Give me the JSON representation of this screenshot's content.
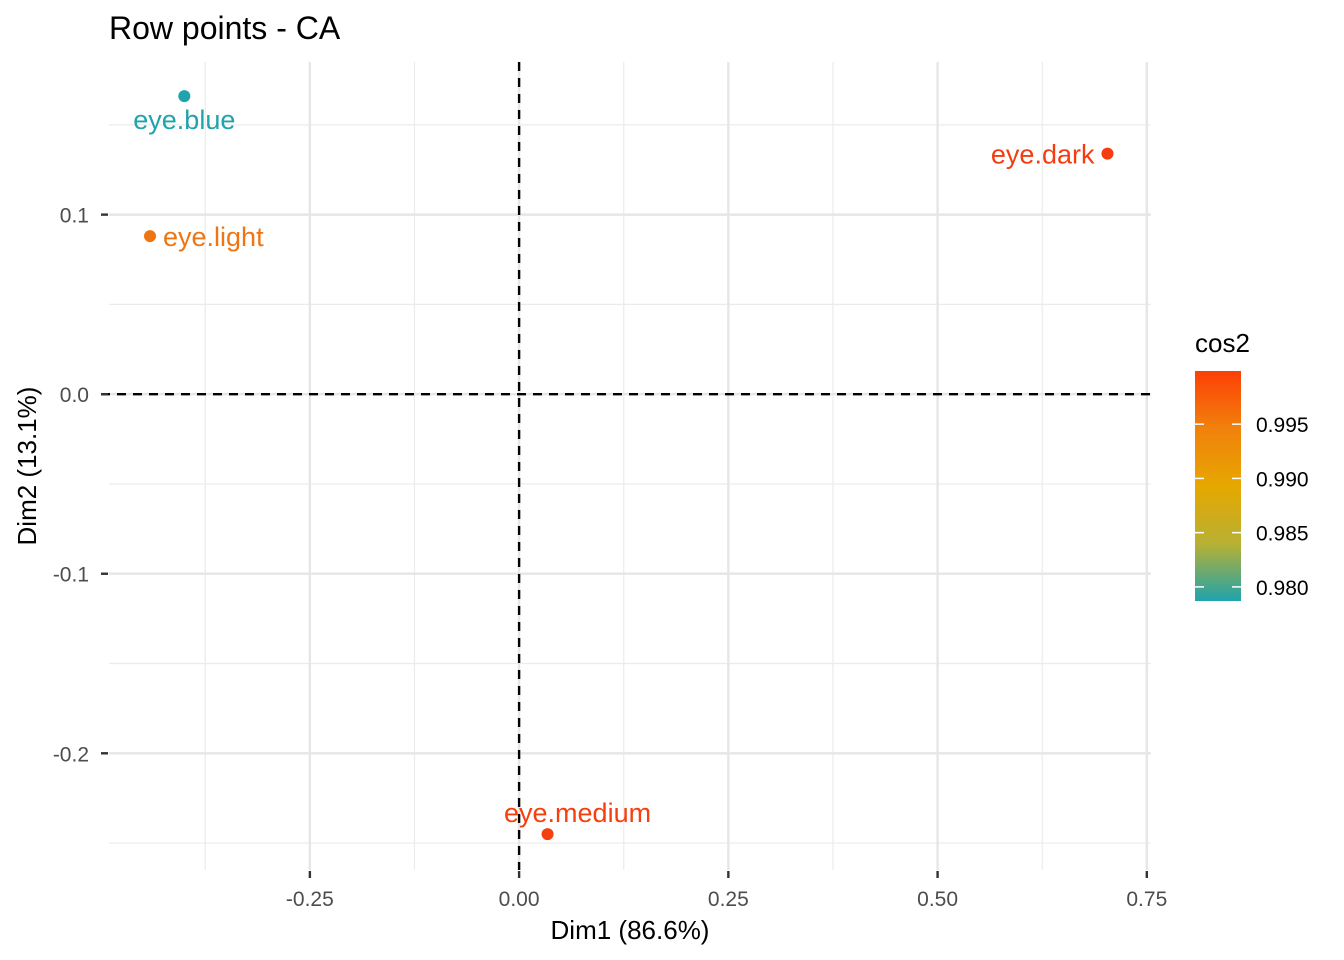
{
  "chart_data": {
    "type": "scatter",
    "title": "Row points - CA",
    "xlabel": "Dim1 (86.6%)",
    "ylabel": "Dim2 (13.1%)",
    "xlim": [
      -0.49,
      0.755
    ],
    "ylim": [
      -0.265,
      0.185
    ],
    "x_ticks": [
      -0.25,
      0.0,
      0.25,
      0.5,
      0.75
    ],
    "x_tick_labels": [
      "-0.25",
      "0.00",
      "0.25",
      "0.50",
      "0.75"
    ],
    "y_ticks": [
      -0.2,
      -0.1,
      0.0,
      0.1
    ],
    "y_tick_labels": [
      "-0.2",
      "-0.1",
      "0.0",
      "0.1"
    ],
    "grid": true,
    "reference_lines": {
      "x": 0,
      "y": 0,
      "style": "dashed"
    },
    "points": [
      {
        "label": "eye.blue",
        "x": -0.4,
        "y": 0.166,
        "cos2": 0.979,
        "color": "#1fa3ad"
      },
      {
        "label": "eye.light",
        "x": -0.441,
        "y": 0.088,
        "cos2": 0.995,
        "color": "#ee7511"
      },
      {
        "label": "eye.medium",
        "x": 0.034,
        "y": -0.245,
        "cos2": 0.9995,
        "color": "#f63f0f"
      },
      {
        "label": "eye.dark",
        "x": 0.703,
        "y": 0.134,
        "cos2": 0.9996,
        "color": "#f53c10"
      }
    ],
    "legend": {
      "title": "cos2",
      "position": "right",
      "range": [
        0.9787,
        0.9999
      ],
      "ticks": [
        0.98,
        0.985,
        0.99,
        0.995
      ],
      "tick_labels": [
        "0.980",
        "0.985",
        "0.990",
        "0.995"
      ],
      "gradient": [
        "#1fa3ad",
        "#b8b033",
        "#e6a700",
        "#f1810c",
        "#fd3f06"
      ]
    }
  }
}
